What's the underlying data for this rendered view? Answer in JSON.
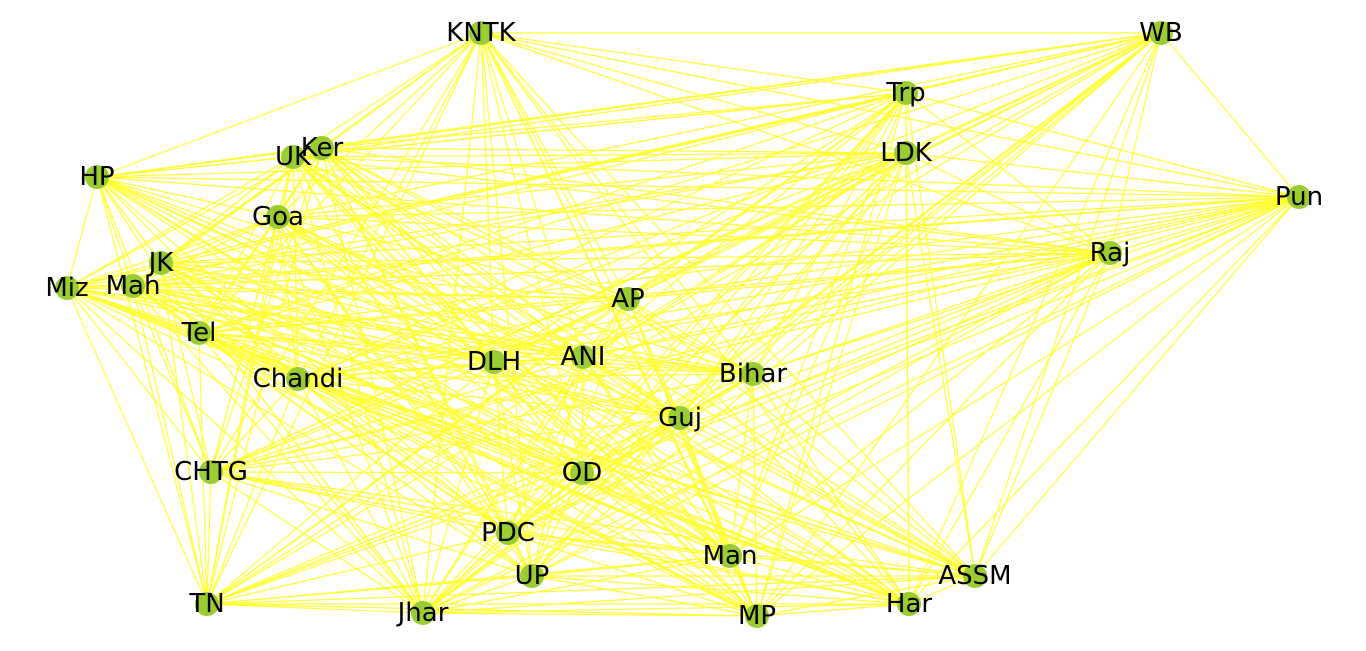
{
  "graph": {
    "node_color": "#9acd32",
    "edge_color": "#ffff33",
    "label_color": "#000000",
    "nodes": [
      {
        "id": "KNTK"
      },
      {
        "id": "WB"
      },
      {
        "id": "Trp"
      },
      {
        "id": "LDK"
      },
      {
        "id": "Pun"
      },
      {
        "id": "Raj"
      },
      {
        "id": "HP"
      },
      {
        "id": "UK"
      },
      {
        "id": "Ker"
      },
      {
        "id": "Goa"
      },
      {
        "id": "JK"
      },
      {
        "id": "Miz"
      },
      {
        "id": "Mah"
      },
      {
        "id": "Tel"
      },
      {
        "id": "AP"
      },
      {
        "id": "DLH"
      },
      {
        "id": "ANI"
      },
      {
        "id": "Bihar"
      },
      {
        "id": "Chandi"
      },
      {
        "id": "Guj"
      },
      {
        "id": "CHTG"
      },
      {
        "id": "OD"
      },
      {
        "id": "PDC"
      },
      {
        "id": "Man"
      },
      {
        "id": "ASSM"
      },
      {
        "id": "UP"
      },
      {
        "id": "TN"
      },
      {
        "id": "Jhar"
      },
      {
        "id": "MP"
      },
      {
        "id": "Har"
      }
    ]
  }
}
